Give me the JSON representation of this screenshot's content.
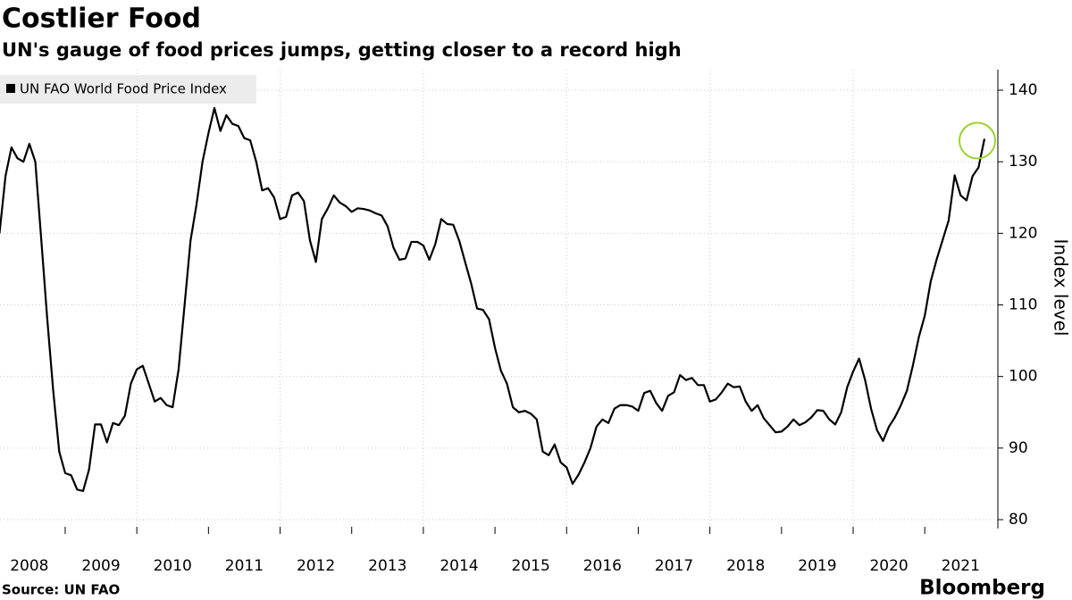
{
  "chart_data": {
    "type": "line",
    "title": "Costlier Food",
    "subtitle": "UN's gauge of food prices jumps, getting closer to a record high",
    "ylabel": "Index level",
    "source": "Source: UN FAO",
    "brand": "Bloomberg",
    "x": [
      2008.083,
      2008.167,
      2008.25,
      2008.333,
      2008.417,
      2008.5,
      2008.583,
      2008.667,
      2008.75,
      2008.833,
      2008.917,
      2009,
      2009.083,
      2009.167,
      2009.25,
      2009.333,
      2009.417,
      2009.5,
      2009.583,
      2009.667,
      2009.75,
      2009.833,
      2009.917,
      2010,
      2010.083,
      2010.167,
      2010.25,
      2010.333,
      2010.417,
      2010.5,
      2010.583,
      2010.667,
      2010.75,
      2010.833,
      2010.917,
      2011,
      2011.083,
      2011.167,
      2011.25,
      2011.333,
      2011.417,
      2011.5,
      2011.583,
      2011.667,
      2011.75,
      2011.833,
      2011.917,
      2012,
      2012.083,
      2012.167,
      2012.25,
      2012.333,
      2012.417,
      2012.5,
      2012.583,
      2012.667,
      2012.75,
      2012.833,
      2012.917,
      2013,
      2013.083,
      2013.167,
      2013.25,
      2013.333,
      2013.417,
      2013.5,
      2013.583,
      2013.667,
      2013.75,
      2013.833,
      2013.917,
      2014,
      2014.083,
      2014.167,
      2014.25,
      2014.333,
      2014.417,
      2014.5,
      2014.583,
      2014.667,
      2014.75,
      2014.833,
      2014.917,
      2015,
      2015.083,
      2015.167,
      2015.25,
      2015.333,
      2015.417,
      2015.5,
      2015.583,
      2015.667,
      2015.75,
      2015.833,
      2015.917,
      2016,
      2016.083,
      2016.167,
      2016.25,
      2016.333,
      2016.417,
      2016.5,
      2016.583,
      2016.667,
      2016.75,
      2016.833,
      2016.917,
      2017,
      2017.083,
      2017.167,
      2017.25,
      2017.333,
      2017.417,
      2017.5,
      2017.583,
      2017.667,
      2017.75,
      2017.833,
      2017.917,
      2018,
      2018.083,
      2018.167,
      2018.25,
      2018.333,
      2018.417,
      2018.5,
      2018.583,
      2018.667,
      2018.75,
      2018.833,
      2018.917,
      2019,
      2019.083,
      2019.167,
      2019.25,
      2019.333,
      2019.417,
      2019.5,
      2019.583,
      2019.667,
      2019.75,
      2019.833,
      2019.917,
      2020,
      2020.083,
      2020.167,
      2020.25,
      2020.333,
      2020.417,
      2020.5,
      2020.583,
      2020.667,
      2020.75,
      2020.833,
      2020.917,
      2021,
      2021.083,
      2021.167,
      2021.25,
      2021.333,
      2021.417,
      2021.5,
      2021.583,
      2021.667,
      2021.75,
      2021.833
    ],
    "series": [
      {
        "name": "UN FAO World Food Price Index",
        "color": "#000000",
        "values": [
          120,
          128,
          132,
          130.5,
          130,
          132.5,
          130,
          119,
          108,
          98,
          89.5,
          86.5,
          86.2,
          84.2,
          84,
          87,
          93.3,
          93.3,
          90.8,
          93.5,
          93.2,
          94.5,
          99,
          101,
          101.5,
          99,
          96.5,
          97,
          96,
          95.7,
          101,
          110,
          119,
          124,
          130,
          134,
          137.5,
          134.3,
          136.5,
          135.3,
          135,
          133.3,
          133,
          130,
          126,
          126.3,
          125,
          122,
          122.3,
          125.3,
          125.7,
          124.5,
          119,
          116,
          122,
          123.5,
          125.3,
          124.3,
          123.8,
          123,
          123.5,
          123.4,
          123.2,
          122.8,
          122.5,
          121,
          118,
          116.3,
          116.5,
          118.8,
          118.8,
          118.3,
          116.3,
          118.5,
          122,
          121.3,
          121.2,
          119,
          116,
          113,
          109.5,
          109.3,
          108,
          104,
          100.8,
          99,
          95.7,
          95,
          95.2,
          94.8,
          94,
          89.5,
          89,
          90.5,
          88,
          87.3,
          85,
          86.3,
          88,
          90,
          93,
          94,
          93.5,
          95.5,
          96,
          96,
          95.8,
          95.2,
          97.7,
          98,
          96.3,
          95.2,
          97.3,
          97.8,
          100.2,
          99.5,
          99.8,
          98.8,
          98.8,
          96.5,
          96.8,
          97.8,
          99,
          98.5,
          98.6,
          96.5,
          95.2,
          96,
          94.2,
          93.2,
          92.2,
          92.3,
          93,
          94,
          93.2,
          93.6,
          94.3,
          95.3,
          95.2,
          94,
          93.3,
          95,
          98.5,
          100.7,
          102.5,
          99.5,
          95.5,
          92.5,
          91,
          93,
          94.3,
          96,
          98,
          101.5,
          105.5,
          108.5,
          113.3,
          116.4,
          119.1,
          121.8,
          128.1,
          125.3,
          124.6,
          128,
          129.2,
          133.2
        ]
      }
    ],
    "xlim": [
      2008.09,
      2022.02
    ],
    "xticks": [
      2008,
      2009,
      2010,
      2011,
      2012,
      2013,
      2014,
      2015,
      2016,
      2017,
      2018,
      2019,
      2020,
      2021
    ],
    "ylim": [
      80,
      140
    ],
    "yticks": [
      80,
      90,
      100,
      110,
      120,
      130,
      140
    ],
    "grid": true,
    "legend": "top-left"
  }
}
